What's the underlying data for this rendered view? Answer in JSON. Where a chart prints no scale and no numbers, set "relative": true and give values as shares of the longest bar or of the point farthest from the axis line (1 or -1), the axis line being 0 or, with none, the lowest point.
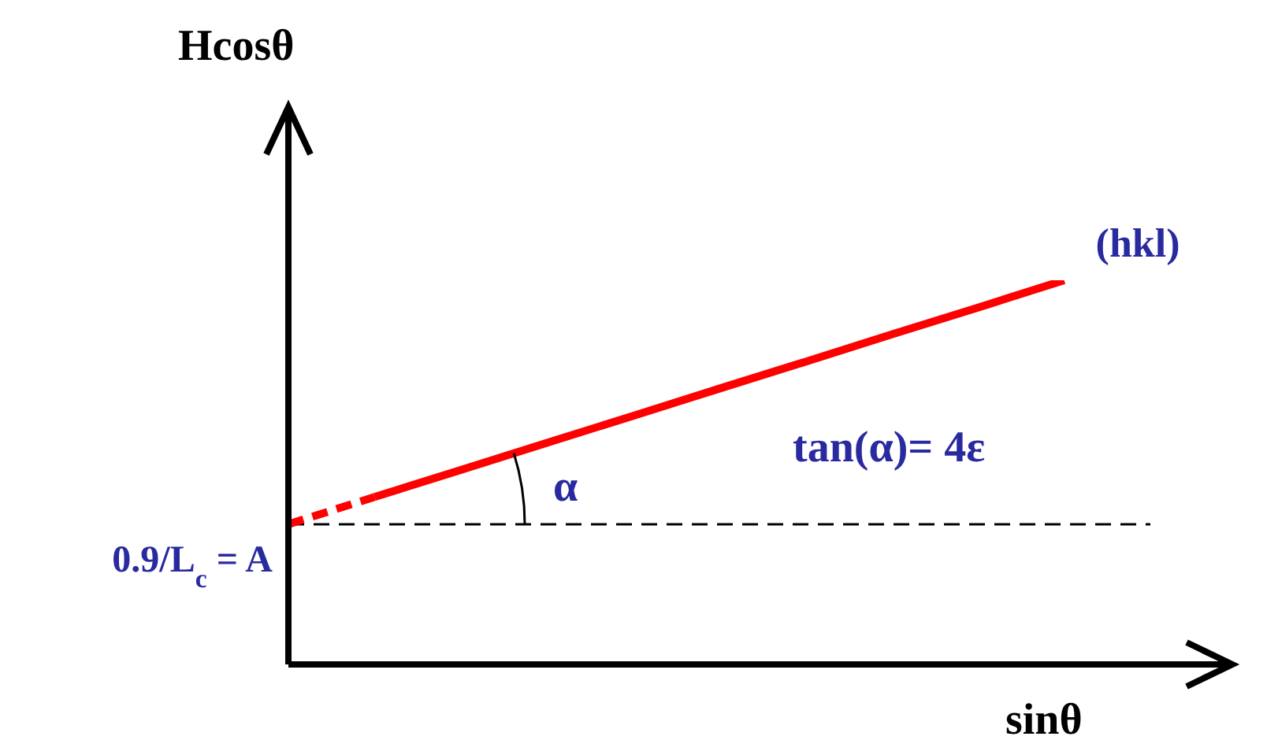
{
  "chart_data": {
    "type": "line",
    "relative": true,
    "xlabel": "sinθ",
    "ylabel": "Hcosθ",
    "categories": [
      null,
      null,
      null,
      null,
      null,
      null,
      null,
      null,
      null,
      null,
      null
    ],
    "series": [
      {
        "color": "#ff0000",
        "line_style": "dashed",
        "values": [
          0.365,
          0.436,
          null,
          null,
          null,
          null,
          null,
          null,
          null,
          null,
          null
        ]
      },
      {
        "name": "(hkl)",
        "color": "#ff0000",
        "line_style": "solid",
        "values": [
          null,
          0.436,
          0.506,
          0.577,
          0.647,
          0.718,
          0.788,
          0.859,
          0.929,
          1.0,
          null
        ]
      }
    ],
    "ref_lines": [
      {
        "axis": "y",
        "value": 0.365,
        "label": "0.9/L$_{c}$ = A",
        "color": "#000000",
        "line_style": "dashed"
      }
    ],
    "annotations": [
      "α",
      "tan(α)= 4ε"
    ],
    "marker": "none"
  }
}
